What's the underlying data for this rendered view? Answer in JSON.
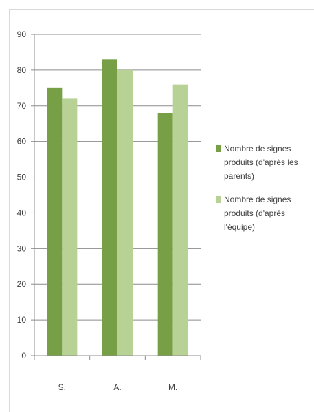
{
  "chart_data": {
    "type": "bar",
    "categories": [
      "S.",
      "A.",
      "M."
    ],
    "series": [
      {
        "name": "Nombre de signes produits (d'après les parents)",
        "values": [
          75,
          83,
          68
        ],
        "color": "#77a046"
      },
      {
        "name": "Nombre de signes produits (d'après l'équipe)",
        "values": [
          72,
          80,
          76
        ],
        "color": "#b8d295"
      }
    ],
    "yticks": [
      0,
      10,
      20,
      30,
      40,
      50,
      60,
      70,
      80,
      90
    ],
    "ylim": [
      0,
      90
    ],
    "grid": true,
    "legend_position": "right",
    "title": "",
    "xlabel": "",
    "ylabel": ""
  }
}
